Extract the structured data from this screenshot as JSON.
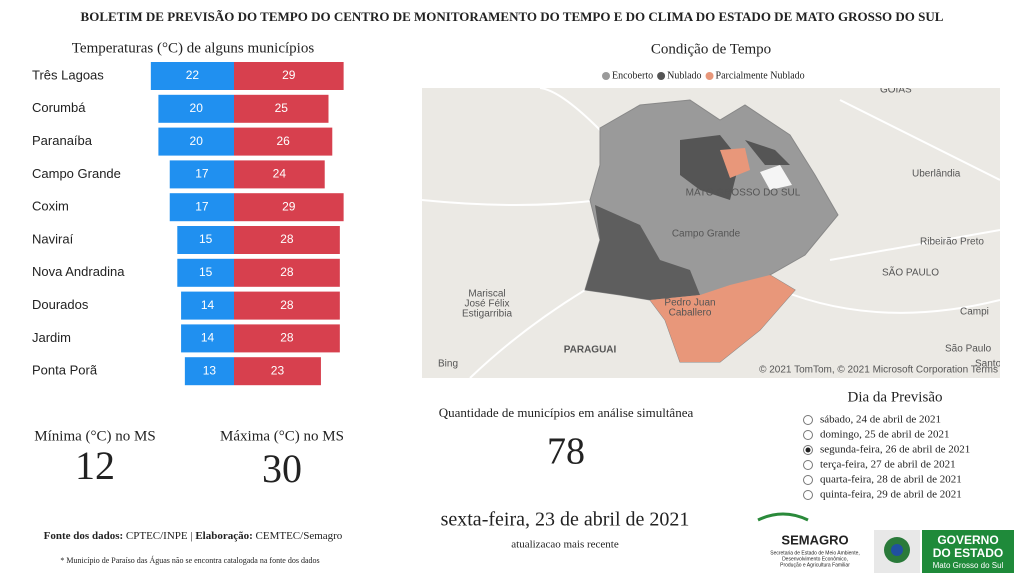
{
  "header": {
    "title": "BOLETIM DE PREVISÃO DO TEMPO DO CENTRO DE MONITORAMENTO DO TEMPO E DO CLIMA DO ESTADO DE MATO GROSSO DO SUL"
  },
  "chart_data": {
    "type": "bar-diverging",
    "title": "Temperaturas (°C) de alguns municípios",
    "categories": [
      "Três Lagoas",
      "Corumbá",
      "Paranaíba",
      "Campo Grande",
      "Coxim",
      "Naviraí",
      "Nova Andradina",
      "Dourados",
      "Jardim",
      "Ponta Porã"
    ],
    "series": [
      {
        "color": "#2090f0",
        "values": [
          22,
          20,
          20,
          17,
          17,
          15,
          15,
          14,
          14,
          13
        ]
      },
      {
        "color": "#d7404e",
        "values": [
          29,
          25,
          26,
          24,
          29,
          28,
          28,
          28,
          28,
          23
        ]
      }
    ]
  },
  "map": {
    "title": "Condição de Tempo",
    "legend": [
      {
        "label": "Encoberto",
        "color": "#9a9a9a"
      },
      {
        "label": "Nublado",
        "color": "#555555"
      },
      {
        "label": "Parcialmente Nublado",
        "color": "#e8977a"
      }
    ],
    "labels": [
      "GOIÁS",
      "Uberlândia",
      "MATO GROSSO DO SUL",
      "Campo Grande",
      "Ribeirão Preto",
      "SÃO PAULO",
      "Campi",
      "Mariscal",
      "José Félix",
      "Estigarribia",
      "Pedro Juan",
      "Caballero",
      "PARAGUAI",
      "São Paulo",
      "Santo",
      "Bing",
      "© 2021 TomTom, © 2021 Microsoft Corporation  Terms"
    ]
  },
  "kpis": {
    "min": {
      "label": "Mínima (°C) no MS",
      "value": 12
    },
    "max": {
      "label": "Máxima (°C) no MS",
      "value": 30
    },
    "count": {
      "label": "Quantidade de municípios em análise simultânea",
      "value": 78
    }
  },
  "update": {
    "date": "sexta-feira, 23 de abril de 2021",
    "note": "atualizacao mais recente"
  },
  "forecast": {
    "title": "Dia da Previsão",
    "days": [
      "sábado, 24 de abril de 2021",
      "domingo, 25 de abril de 2021",
      "segunda-feira, 26 de abril de 2021",
      "terça-feira, 27 de abril de 2021",
      "quarta-feira, 28 de abril de 2021",
      "quinta-feira, 29 de abril de 2021"
    ],
    "selected": 2
  },
  "footer": {
    "source": [
      "Fonte dos dados:",
      "CPTEC/INPE |",
      "Elaboração:",
      "CEMTEC/Semagro"
    ],
    "note": "* Município de Paraíso das Águas não se encontra catalogada na fonte dos dados"
  },
  "logos": {
    "semagro": "SEMAGRO",
    "semagro_sub": [
      "Secretaria de Estado de Meio Ambiente,",
      "Desenvolvimento Econômico,",
      "Produção e Agricultura Familiar"
    ],
    "gov": [
      "GOVERNO",
      "DO ESTADO",
      "Mato Grosso do Sul"
    ]
  }
}
